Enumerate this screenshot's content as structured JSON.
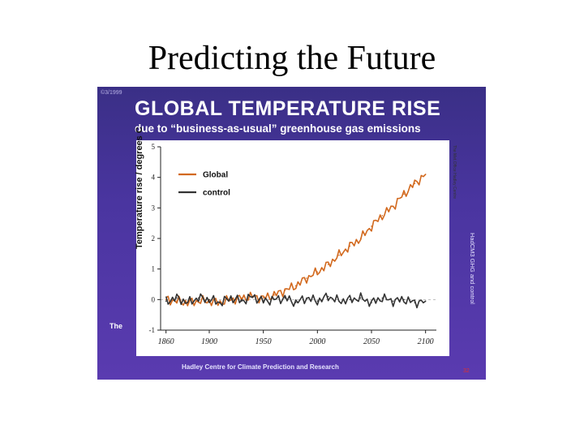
{
  "slide": {
    "title": "Predicting the Future"
  },
  "panel": {
    "copyright": "©3/1999",
    "headline": "GLOBAL TEMPERATURE RISE",
    "subhead": "due to “business-as-usual” greenhouse gas emissions",
    "side_label_right": "HadCM3 GHG and control",
    "side_label_small": "The Met.Office Hadley Centre",
    "left_fragment": "The",
    "footer": "Hadley Centre for Climate Prediction and Research",
    "page_number": "32"
  },
  "colors": {
    "global": "#d2691e",
    "control": "#333333",
    "panel_bg": "#4a35a0"
  },
  "chart_data": {
    "type": "line",
    "title": "GLOBAL TEMPERATURE RISE",
    "subtitle": "due to “business-as-usual” greenhouse gas emissions",
    "xlabel": "",
    "ylabel": "Temperature rise / degrees C",
    "xlim": [
      1855,
      2110
    ],
    "ylim": [
      -1,
      5
    ],
    "x_ticks": [
      1860,
      1900,
      1950,
      2000,
      2050,
      2100
    ],
    "x_tick_labels": [
      "1860",
      "1900",
      "1950",
      "2000",
      "2050",
      "2100"
    ],
    "y_ticks": [
      -1,
      0,
      1,
      2,
      3,
      4,
      5
    ],
    "y_tick_labels": [
      "-1",
      "0",
      "1",
      "2",
      "3",
      "4",
      "5"
    ],
    "legend_position": "top-left",
    "series": [
      {
        "name": "Global",
        "color": "#d2691e",
        "x": [
          1860,
          1870,
          1880,
          1890,
          1900,
          1910,
          1920,
          1930,
          1940,
          1950,
          1960,
          1970,
          1980,
          1990,
          2000,
          2010,
          2020,
          2030,
          2040,
          2050,
          2060,
          2070,
          2080,
          2090,
          2100
        ],
        "values": [
          0.0,
          -0.05,
          -0.1,
          -0.05,
          -0.05,
          -0.1,
          0.0,
          0.05,
          0.1,
          0.05,
          0.15,
          0.3,
          0.45,
          0.7,
          0.9,
          1.15,
          1.45,
          1.75,
          2.0,
          2.4,
          2.75,
          3.05,
          3.45,
          3.8,
          4.1
        ]
      },
      {
        "name": "control",
        "color": "#333333",
        "x": [
          1860,
          1870,
          1880,
          1890,
          1900,
          1910,
          1920,
          1930,
          1940,
          1950,
          1960,
          1970,
          1980,
          1990,
          2000,
          2010,
          2020,
          2030,
          2040,
          2050,
          2060,
          2070,
          2080,
          2090,
          2100
        ],
        "values": [
          -0.05,
          0.05,
          -0.1,
          0.05,
          0.0,
          -0.1,
          0.05,
          -0.05,
          0.1,
          -0.05,
          0.0,
          0.05,
          -0.1,
          0.05,
          -0.05,
          0.1,
          -0.05,
          0.0,
          0.05,
          -0.1,
          0.05,
          -0.05,
          0.0,
          -0.1,
          -0.05
        ]
      }
    ]
  }
}
